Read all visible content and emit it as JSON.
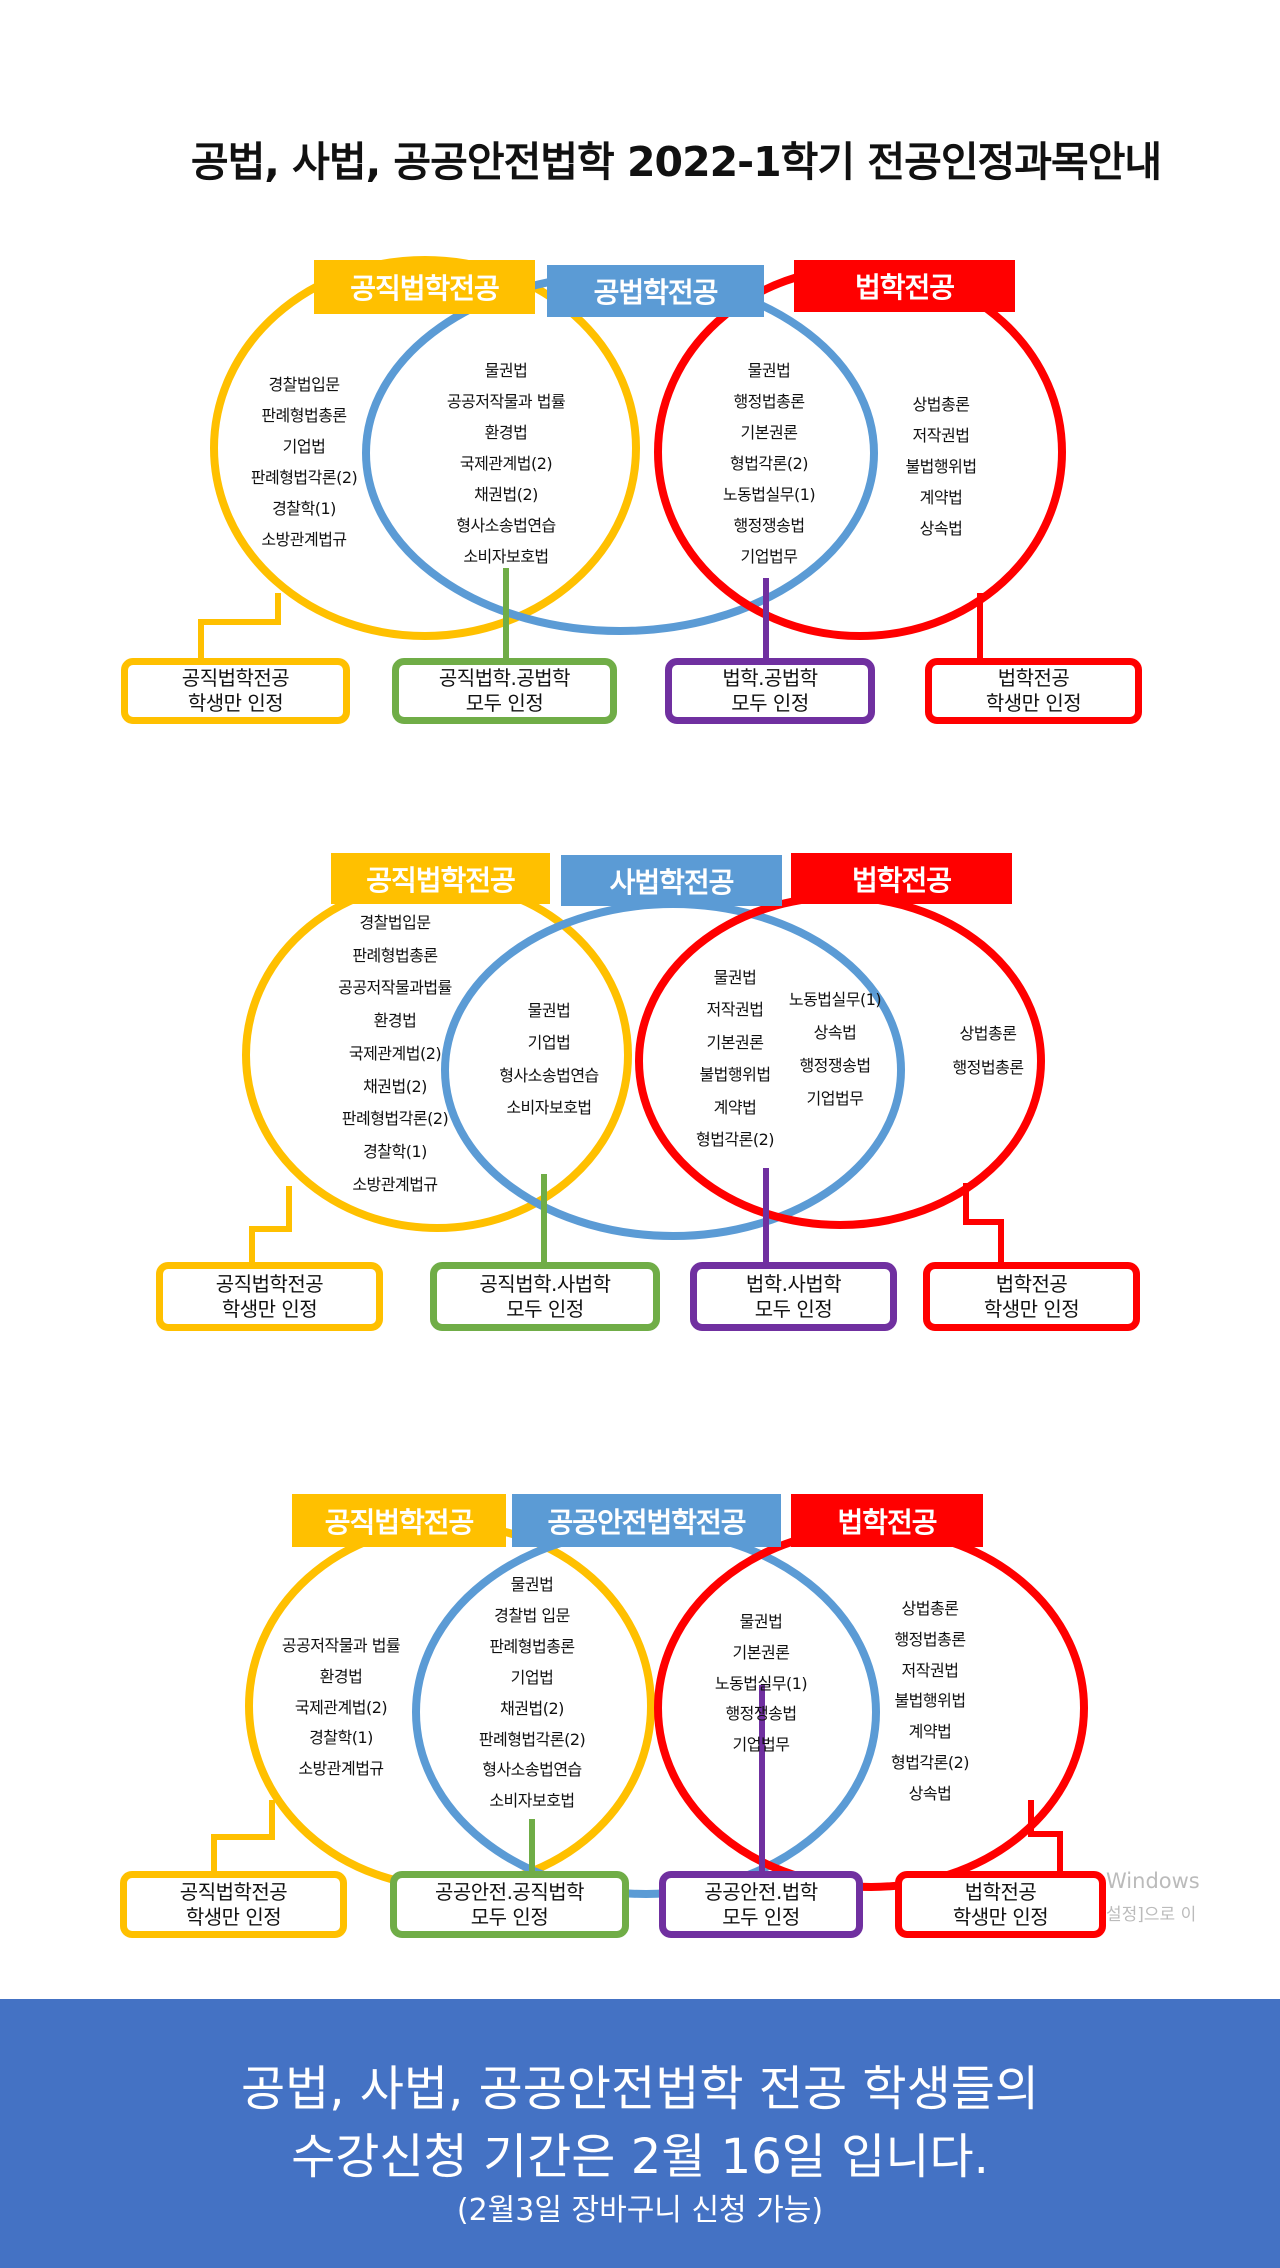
{
  "title": "공법, 사법, 공공안전법학 2022-1학기 전공인정과목안내",
  "colors": {
    "yellow": "#FFC000",
    "blue": "#5B9BD5",
    "red": "#FF0000",
    "green": "#70AD47",
    "purple": "#7030A0",
    "footer": "#4472C4"
  },
  "diagrams": [
    {
      "labels": [
        "공직법학전공",
        "공법학전공",
        "법학전공"
      ],
      "columns": [
        [
          "경찰법입문",
          "판례형법총론",
          "기업법",
          "판례형법각론(2)",
          "경찰학(1)",
          "소방관계법규"
        ],
        [
          "물권법",
          "공공저작물과 법률",
          "환경법",
          "국제관계법(2)",
          "채권법(2)",
          "형사소송법연습",
          "소비자보호법"
        ],
        [
          "물권법",
          "행정법총론",
          "기본권론",
          "형법각론(2)",
          "노동법실무(1)",
          "행정쟁송법",
          "기업법무"
        ],
        [
          "상법총론",
          "저작권법",
          "불법행위법",
          "계약법",
          "상속법"
        ]
      ],
      "boxes": [
        [
          "공직법학전공",
          "학생만 인정"
        ],
        [
          "공직법학.공법학",
          "모두 인정"
        ],
        [
          "법학.공법학",
          "모두 인정"
        ],
        [
          "법학전공",
          "학생만 인정"
        ]
      ]
    },
    {
      "labels": [
        "공직법학전공",
        "사법학전공",
        "법학전공"
      ],
      "columns": [
        [
          "경찰법입문",
          "판례형법총론",
          "공공저작물과법률",
          "환경법",
          "국제관계법(2)",
          "채권법(2)",
          "판례형법각론(2)",
          "경찰학(1)",
          "소방관계법규"
        ],
        [
          "물권법",
          "기업법",
          "형사소송법연습",
          "소비자보호법"
        ],
        [
          "물권법",
          "저작권법",
          "기본권론",
          "불법행위법",
          "계약법",
          "형법각론(2)"
        ],
        [
          "노동법실무(1)",
          "상속법",
          "행정쟁송법",
          "기업법무"
        ],
        [
          "상법총론",
          "행정법총론"
        ]
      ],
      "boxes": [
        [
          "공직법학전공",
          "학생만 인정"
        ],
        [
          "공직법학.사법학",
          "모두 인정"
        ],
        [
          "법학.사법학",
          "모두 인정"
        ],
        [
          "법학전공",
          "학생만 인정"
        ]
      ]
    },
    {
      "labels": [
        "공직법학전공",
        "공공안전법학전공",
        "법학전공"
      ],
      "columns": [
        [
          "공공저작물과 법률",
          "환경법",
          "국제관계법(2)",
          "경찰학(1)",
          "소방관계법규"
        ],
        [
          "물권법",
          "경찰법 입문",
          "판례형법총론",
          "기업법",
          "채권법(2)",
          "판례형법각론(2)",
          "형사소송법연습",
          "소비자보호법"
        ],
        [
          "물권법",
          "기본권론",
          "노동법실무(1)",
          "행정쟁송법",
          "기업법무"
        ],
        [
          "상법총론",
          "행정법총론",
          "저작권법",
          "불법행위법",
          "계약법",
          "형법각론(2)",
          "상속법"
        ]
      ],
      "boxes": [
        [
          "공직법학전공",
          "학생만 인정"
        ],
        [
          "공공안전.공직법학",
          "모두 인정"
        ],
        [
          "공공안전.법학",
          "모두 인정"
        ],
        [
          "법학전공",
          "학생만 인정"
        ]
      ]
    }
  ],
  "watermark": {
    "line1": "Windows",
    "line2": "설정]으로 이"
  },
  "footer": {
    "line1": "공법, 사법, 공공안전법학 전공 학생들의",
    "line2": "수강신청 기간은 2월 16일 입니다.",
    "line3": "(2월3일 장바구니 신청 가능)"
  }
}
